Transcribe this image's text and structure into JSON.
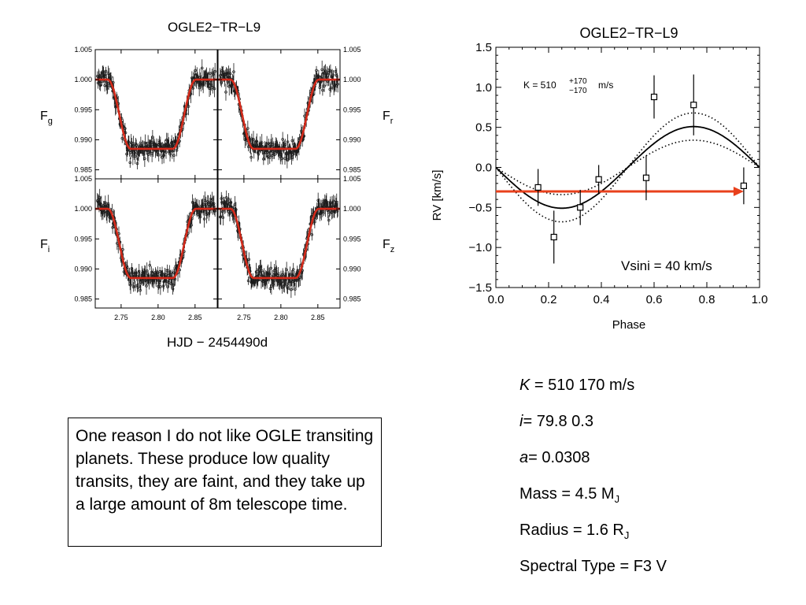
{
  "chart_data": [
    {
      "type": "line",
      "title": "OGLE2−TR−L9",
      "xlabel": "HJD − 2454490d",
      "ylabel_left_top": "F",
      "ylabel_left_top_sub": "g",
      "ylabel_right_top": "F",
      "ylabel_right_top_sub": "r",
      "ylabel_left_bottom": "F",
      "ylabel_left_bottom_sub": "i",
      "ylabel_right_bottom": "F",
      "ylabel_right_bottom_sub": "z",
      "xlim": [
        2.715,
        2.88
      ],
      "ylim": [
        0.9835,
        1.005
      ],
      "xticks": [
        "2.75",
        "2.80",
        "2.85"
      ],
      "yticks": [
        "1.005",
        "1.000",
        "0.995",
        "0.990",
        "0.985"
      ],
      "model": {
        "baseline": 1.0,
        "depth_level": 0.9885,
        "ingress_start": 2.732,
        "ingress_end": 2.763,
        "egress_start": 2.82,
        "egress_end": 2.851
      },
      "panels": [
        "g",
        "r",
        "i",
        "z"
      ],
      "colors": {
        "model": "#d42a1a",
        "data": "#1a1a1a"
      }
    },
    {
      "type": "scatter",
      "title": "OGLE2−TR−L9",
      "xlabel": "Phase",
      "ylabel": "RV  [km/s]",
      "xlim": [
        0.0,
        1.0
      ],
      "ylim": [
        -1.5,
        1.5
      ],
      "xticks": [
        "0.0",
        "0.2",
        "0.4",
        "0.6",
        "0.8",
        "1.0"
      ],
      "yticks": [
        "1.5",
        "1.0",
        "0.5",
        "0.0",
        "−0.5",
        "−1.0",
        "−1.5"
      ],
      "points": [
        {
          "x": 0.16,
          "y": -0.25,
          "err": 0.23
        },
        {
          "x": 0.22,
          "y": -0.87,
          "err": 0.33
        },
        {
          "x": 0.32,
          "y": -0.5,
          "err": 0.22
        },
        {
          "x": 0.39,
          "y": -0.15,
          "err": 0.18
        },
        {
          "x": 0.57,
          "y": -0.13,
          "err": 0.28
        },
        {
          "x": 0.6,
          "y": 0.88,
          "err": 0.27
        },
        {
          "x": 0.75,
          "y": 0.78,
          "err": 0.38
        },
        {
          "x": 0.94,
          "y": -0.23,
          "err": 0.23
        }
      ],
      "model": {
        "K": 0.51,
        "K_low": 0.34,
        "K_high": 0.68
      },
      "arrow": {
        "y": -0.3,
        "x_start": 0.0,
        "x_end": 0.94,
        "color": "#e8401c"
      },
      "annotation_k": "K  =  510",
      "annotation_k_sup": "+170",
      "annotation_k_sub": "−170",
      "annotation_k_unit": "m/s",
      "annotation_vsini": "Vsini = 40 km/s"
    }
  ],
  "note": {
    "text": "One reason I do not like OGLE transiting planets. These produce low quality transits, they are faint, and they take up a large amount of 8m telescope time."
  },
  "params": {
    "k_label": "K",
    "k_value": " = 510  170 m/s",
    "i_label": "i",
    "i_value": "= 79.8   0.3",
    "a_label": "a",
    "a_value": "= 0.0308",
    "mass_text": "Mass = 4.5  M",
    "mass_sub": "J",
    "radius_text": "Radius = 1.6 R",
    "radius_sub": "J",
    "spectral_text": "Spectral Type = F3 V"
  }
}
